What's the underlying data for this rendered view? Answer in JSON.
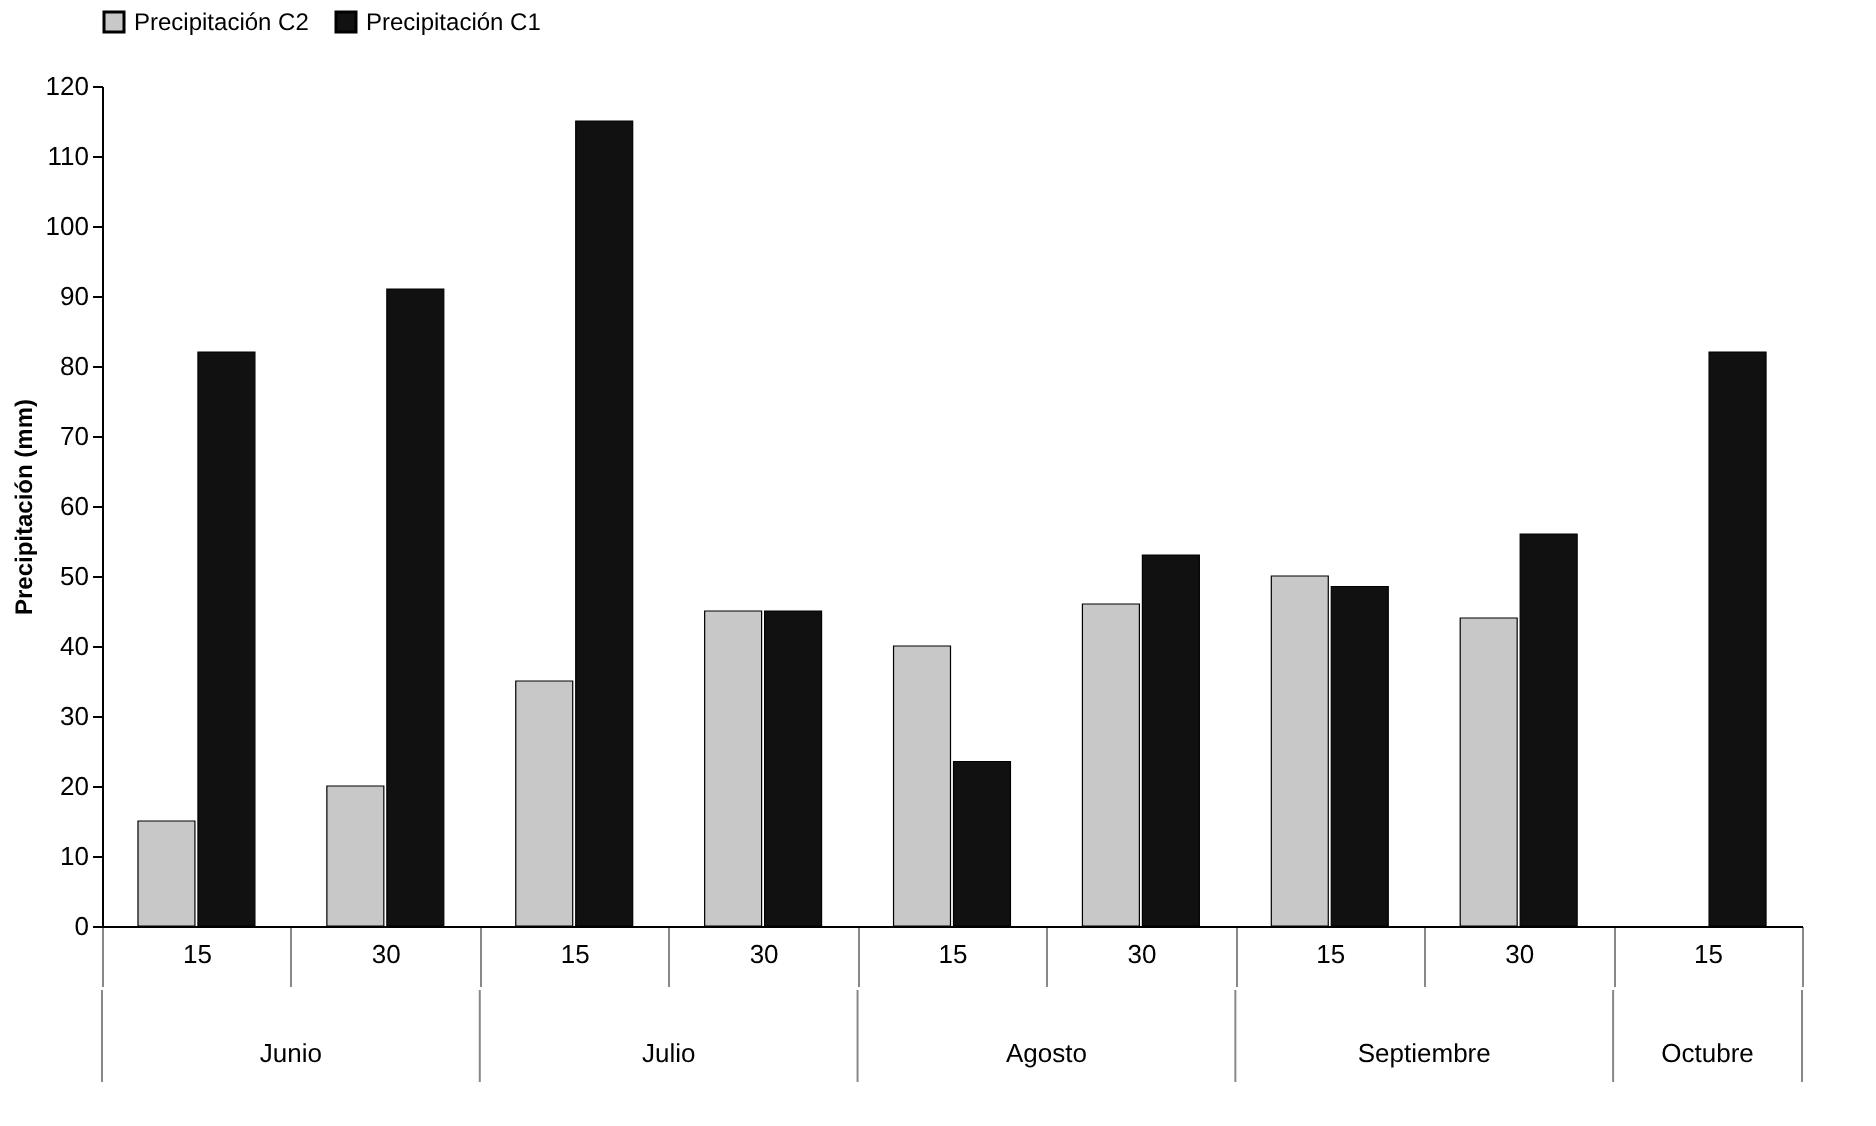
{
  "chart_data": {
    "type": "bar",
    "ylabel": "Precipitación (mm)",
    "categories": [
      "15",
      "30",
      "15",
      "30",
      "15",
      "30",
      "15",
      "30",
      "15"
    ],
    "series": [
      {
        "name": "Precipitación C2",
        "color": "#c8c8c8",
        "values": [
          15,
          20,
          35,
          45,
          40,
          46,
          50,
          44,
          null
        ]
      },
      {
        "name": "Precipitación C1",
        "color": "#111111",
        "values": [
          82,
          91,
          115,
          45,
          23.5,
          53,
          48.5,
          56,
          82
        ]
      }
    ],
    "ylim": [
      0,
      120
    ],
    "yticks": [
      0,
      10,
      20,
      30,
      40,
      50,
      60,
      70,
      80,
      90,
      100,
      110,
      120
    ],
    "annotations": [
      "Junio",
      "Julio",
      "Agosto",
      "Septiembre",
      "Octubre"
    ],
    "grid": false,
    "legend": "top"
  }
}
